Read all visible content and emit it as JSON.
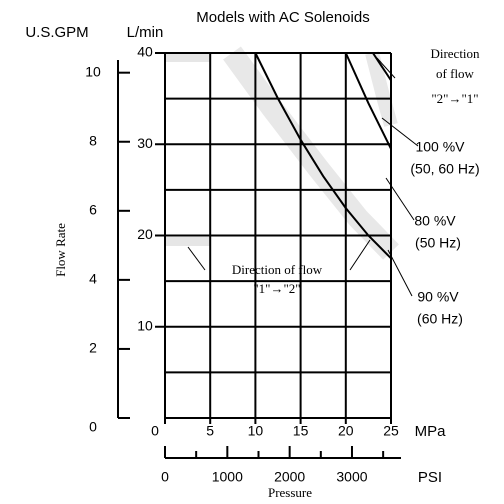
{
  "chart_data": {
    "type": "line",
    "title": "Models with AC Solenoids",
    "y_label": "Flow Rate",
    "y_unit": "L/min",
    "y2_unit": "U.S.GPM",
    "x_label": "Pressure",
    "x_unit": "MPa",
    "x2_unit": "PSI",
    "xlim": [
      0,
      25
    ],
    "xticks": [
      0,
      5,
      10,
      15,
      20,
      25
    ],
    "ylim": [
      0,
      40
    ],
    "yticks": [
      10,
      20,
      30,
      40
    ],
    "minor_yticks": [
      5,
      15,
      25,
      35
    ],
    "y2lim": [
      0,
      10.57
    ],
    "y2ticks": [
      0,
      2,
      4,
      6,
      8,
      10
    ],
    "x2lim": [
      0,
      3626
    ],
    "x2ticks": [
      0,
      1000,
      2000,
      3000
    ],
    "x2_minor_ticks": [
      500,
      1500,
      2500,
      3500
    ],
    "grid": true,
    "series": [
      {
        "name": "100 %V",
        "note": "(50, 60 Hz)",
        "color": "#000000",
        "x": [
          10,
          12.5,
          15,
          17.5,
          20,
          22.5,
          25
        ],
        "values": [
          40,
          35,
          30.5,
          26.5,
          23,
          20,
          17.5
        ]
      },
      {
        "name": "80 %V",
        "note": "(50 Hz)",
        "color": "#000000",
        "x": [
          20,
          22.5,
          25
        ],
        "values": [
          40,
          34.5,
          29.5
        ]
      },
      {
        "name": "90 %V",
        "note": "(60 Hz)",
        "color": "#000000",
        "x": [
          23,
          25
        ],
        "values": [
          40,
          37
        ]
      }
    ],
    "annotations": {
      "flow_2_1": [
        "Direction",
        "of flow",
        "\"2\"→\"1\""
      ],
      "flow_1_2": [
        "Direction of flow",
        "\"1\"→\"2\""
      ]
    }
  }
}
